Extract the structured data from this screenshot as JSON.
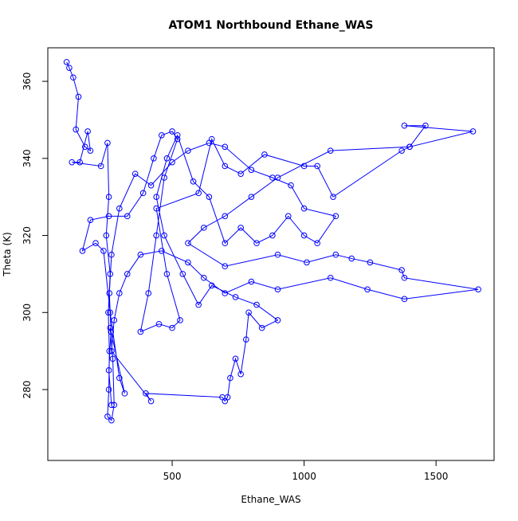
{
  "chart_data": {
    "type": "line",
    "title": "ATOM1 Northbound Ethane_WAS",
    "x_label": "Ethane_WAS",
    "y_label": "Theta (K)",
    "color": "#0000ff",
    "xlim": [
      28.7,
      1720
    ],
    "ylim": [
      261.6,
      368.7
    ],
    "xticks": [
      500,
      1000,
      1500
    ],
    "yticks": [
      280,
      300,
      320,
      340,
      360
    ],
    "x": [
      100,
      110,
      125,
      145,
      135,
      170,
      190,
      180,
      150,
      120,
      230,
      255,
      260,
      250,
      265,
      258,
      262,
      260,
      255,
      270,
      280,
      275,
      265,
      320,
      300,
      265,
      240,
      210,
      160,
      190,
      260,
      330,
      390,
      430,
      460,
      500,
      520,
      470,
      440,
      410,
      380,
      450,
      500,
      530,
      480,
      440,
      600,
      650,
      700,
      760,
      850,
      1000,
      1050,
      1110,
      1370,
      1400,
      1640,
      1380,
      1460,
      1400,
      1100,
      900,
      800,
      700,
      620,
      560,
      700,
      900,
      1010,
      1120,
      1180,
      1250,
      1370,
      1380,
      1660,
      1380,
      1240,
      1100,
      900,
      800,
      700,
      620,
      560,
      460,
      380,
      330,
      300,
      280,
      270,
      420,
      400,
      690,
      700,
      710,
      720,
      740,
      760,
      780,
      790,
      840,
      900,
      820,
      740,
      650,
      600,
      540,
      470,
      440,
      480,
      520,
      580,
      640,
      700,
      760,
      820,
      880,
      940,
      1000,
      1050,
      1120,
      1000,
      950,
      880,
      800,
      700,
      640,
      560,
      500,
      420,
      360,
      300,
      270,
      262,
      268,
      260,
      270
    ],
    "values": [
      365,
      363.5,
      361,
      356,
      347.5,
      343,
      342,
      347,
      339,
      339,
      338,
      344,
      330,
      320,
      310,
      300,
      290,
      280,
      273,
      272,
      276,
      288,
      296,
      279,
      283,
      300,
      316,
      318,
      316,
      324,
      325,
      325,
      331,
      340,
      346,
      347,
      345,
      335,
      320,
      305,
      295,
      297,
      296,
      298,
      310,
      327,
      331,
      345,
      338,
      336,
      341,
      338,
      338,
      330,
      342,
      343,
      347,
      348.5,
      348.5,
      343,
      342,
      335,
      330,
      325,
      322,
      318,
      312,
      315,
      313,
      315,
      314,
      313,
      311,
      309,
      306,
      303.5,
      306,
      309,
      306,
      308,
      305,
      309,
      313,
      316,
      315,
      310,
      305,
      298,
      290,
      277,
      279,
      278,
      277,
      278,
      283,
      288,
      284,
      293,
      300,
      296,
      298,
      302,
      304,
      307,
      302,
      310,
      320,
      330,
      340,
      346,
      334,
      330,
      318,
      322,
      318,
      320,
      325,
      320,
      318,
      325,
      327,
      333,
      335,
      337,
      343,
      344,
      342,
      339,
      333,
      336,
      327,
      315,
      305,
      295,
      285,
      276
    ]
  }
}
